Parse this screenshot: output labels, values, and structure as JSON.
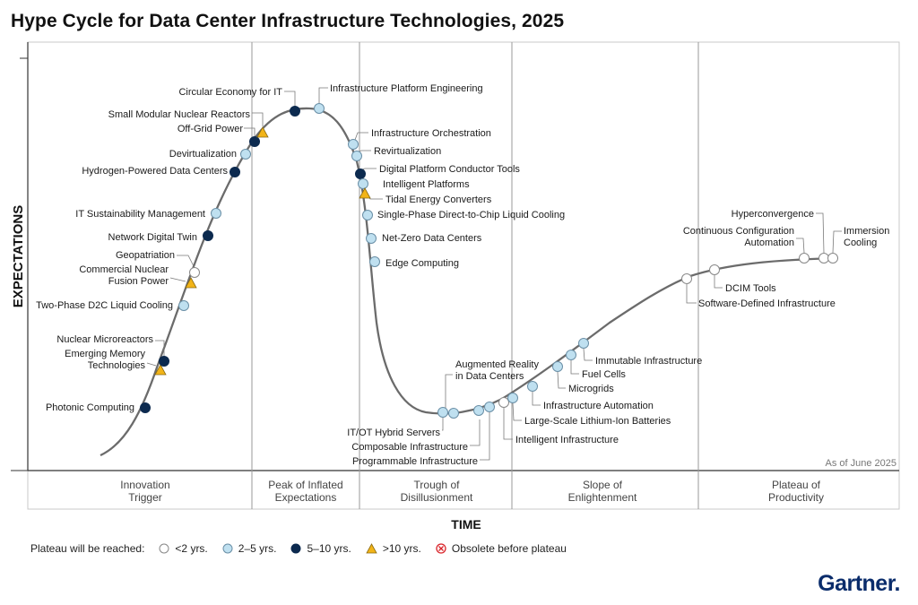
{
  "title": "Hype Cycle for Data Center Infrastructure Technologies, 2025",
  "brand": "Gartner.",
  "colors": {
    "lt2": "#ffffff",
    "2to5": "#bfe0f0",
    "5to10": "#0c2a4f",
    "gt10": "#f2b418",
    "obsolete": "#d9242a",
    "curve": "#6b6b6b"
  },
  "chart_data": {
    "type": "hype-cycle",
    "y_axis_label": "EXPECTATIONS",
    "x_axis_label": "TIME",
    "as_of": "As of June 2025",
    "phases": [
      "Innovation\nTrigger",
      "Peak of Inflated\nExpectations",
      "Trough of\nDisillusionment",
      "Slope of\nEnlightenment",
      "Plateau of\nProductivity"
    ],
    "legend": {
      "label": "Plateau will be reached:",
      "items": [
        {
          "key": "lt2",
          "text": "<2 yrs."
        },
        {
          "key": "2to5",
          "text": "2–5 yrs."
        },
        {
          "key": "5to10",
          "text": "5–10 yrs."
        },
        {
          "key": "gt10",
          "text": ">10 yrs."
        },
        {
          "key": "obsolete",
          "text": "Obsolete before plateau"
        }
      ]
    },
    "technologies": [
      {
        "name": "Photonic Computing",
        "plateau": "5to10"
      },
      {
        "name": "Emerging Memory\nTechnologies",
        "plateau": "gt10"
      },
      {
        "name": "Nuclear Microreactors",
        "plateau": "5to10"
      },
      {
        "name": "Two-Phase D2C Liquid Cooling",
        "plateau": "2to5"
      },
      {
        "name": "Commercial Nuclear\nFusion Power",
        "plateau": "gt10"
      },
      {
        "name": "Geopatriation",
        "plateau": "lt2"
      },
      {
        "name": "Network Digital Twin",
        "plateau": "5to10"
      },
      {
        "name": "IT Sustainability Management",
        "plateau": "2to5"
      },
      {
        "name": "Hydrogen-Powered Data Centers",
        "plateau": "5to10"
      },
      {
        "name": "Devirtualization",
        "plateau": "2to5"
      },
      {
        "name": "Off-Grid Power",
        "plateau": "5to10"
      },
      {
        "name": "Small Modular Nuclear Reactors",
        "plateau": "gt10"
      },
      {
        "name": "Circular Economy for IT",
        "plateau": "5to10"
      },
      {
        "name": "Infrastructure Platform Engineering",
        "plateau": "2to5"
      },
      {
        "name": "Infrastructure Orchestration",
        "plateau": "2to5"
      },
      {
        "name": "Revirtualization",
        "plateau": "2to5"
      },
      {
        "name": "Digital Platform Conductor Tools",
        "plateau": "5to10"
      },
      {
        "name": "Intelligent Platforms",
        "plateau": "2to5"
      },
      {
        "name": "Tidal Energy Converters",
        "plateau": "gt10"
      },
      {
        "name": "Single-Phase Direct-to-Chip Liquid Cooling",
        "plateau": "2to5"
      },
      {
        "name": "Net-Zero Data Centers",
        "plateau": "2to5"
      },
      {
        "name": "Edge Computing",
        "plateau": "2to5"
      },
      {
        "name": "IT/OT Hybrid Servers",
        "plateau": "2to5"
      },
      {
        "name": "Composable Infrastructure",
        "plateau": "2to5"
      },
      {
        "name": "Augmented Reality\nin Data Centers",
        "plateau": "2to5"
      },
      {
        "name": "Programmable Infrastructure",
        "plateau": "2to5"
      },
      {
        "name": "Intelligent Infrastructure",
        "plateau": "lt2"
      },
      {
        "name": "Large-Scale Lithium-Ion Batteries",
        "plateau": "2to5"
      },
      {
        "name": "Infrastructure Automation",
        "plateau": "2to5"
      },
      {
        "name": "Microgrids",
        "plateau": "2to5"
      },
      {
        "name": "Fuel Cells",
        "plateau": "2to5"
      },
      {
        "name": "Immutable Infrastructure",
        "plateau": "2to5"
      },
      {
        "name": "Software-Defined Infrastructure",
        "plateau": "lt2"
      },
      {
        "name": "DCIM Tools",
        "plateau": "lt2"
      },
      {
        "name": "Continuous Configuration\nAutomation",
        "plateau": "lt2"
      },
      {
        "name": "Hyperconvergence",
        "plateau": "lt2"
      },
      {
        "name": "Immersion\nCooling",
        "plateau": "lt2"
      }
    ]
  }
}
